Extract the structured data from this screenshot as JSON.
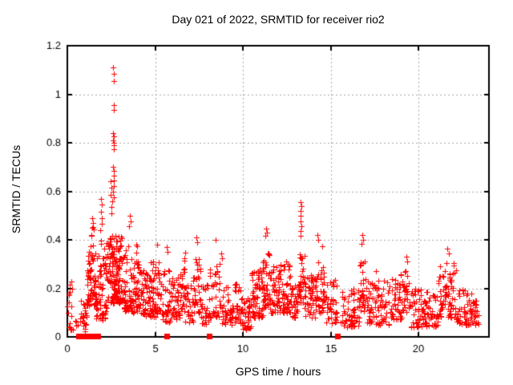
{
  "title": "Day 021 of 2022, SRMTID for receiver rio2",
  "chart_data": {
    "type": "scatter",
    "title": "Day 021 of 2022, SRMTID for receiver rio2",
    "xlabel": "GPS time / hours",
    "ylabel": "SRMTID / TECUs",
    "xlim": [
      0,
      24
    ],
    "ylim": [
      0,
      1.2
    ],
    "xticks": [
      0,
      5,
      10,
      15,
      20
    ],
    "xtick_labels": [
      "0",
      "5",
      "10",
      "15",
      "20"
    ],
    "yticks": [
      0,
      0.2,
      0.4,
      0.6,
      0.8,
      1,
      1.2
    ],
    "ytick_labels": [
      "0",
      "0.2",
      "0.4",
      "0.6",
      "0.8",
      "1",
      "1.2"
    ],
    "grid": true,
    "legend": "none",
    "marker": "plus",
    "marker_size": 7,
    "colors": {
      "series": "#ff0000",
      "grid": "#a8a8a8",
      "axis": "#000000",
      "background": "#ffffff"
    },
    "series_name": "SRMTID",
    "data_start_hour": 0.0,
    "data_end_hour": 23.4,
    "seed": 3,
    "peak_points": [
      [
        2.62,
        1.11
      ],
      [
        2.66,
        1.085
      ],
      [
        2.64,
        1.055
      ],
      [
        2.63,
        0.955
      ],
      [
        2.66,
        0.935
      ],
      [
        2.61,
        0.84
      ],
      [
        2.64,
        0.825
      ],
      [
        2.62,
        0.81
      ],
      [
        2.66,
        0.8
      ],
      [
        2.63,
        0.79
      ],
      [
        2.65,
        0.775
      ],
      [
        2.62,
        0.7
      ],
      [
        2.65,
        0.685
      ],
      [
        2.63,
        0.665
      ],
      [
        2.66,
        0.645
      ],
      [
        2.63,
        0.62
      ],
      [
        2.61,
        0.6
      ],
      [
        2.64,
        0.575
      ],
      [
        2.48,
        0.64
      ],
      [
        2.52,
        0.615
      ],
      [
        2.46,
        0.585
      ],
      [
        2.55,
        0.56
      ],
      [
        2.5,
        0.535
      ],
      [
        2.53,
        0.51
      ],
      [
        1.92,
        0.57
      ],
      [
        1.96,
        0.545
      ],
      [
        1.9,
        0.515
      ],
      [
        1.94,
        0.49
      ],
      [
        1.98,
        0.465
      ],
      [
        1.88,
        0.44
      ],
      [
        1.43,
        0.49
      ],
      [
        1.47,
        0.47
      ],
      [
        1.4,
        0.45
      ],
      [
        3.55,
        0.5
      ],
      [
        3.6,
        0.475
      ],
      [
        3.52,
        0.455
      ],
      [
        13.28,
        0.555
      ],
      [
        13.31,
        0.54
      ],
      [
        13.27,
        0.52
      ],
      [
        13.3,
        0.5
      ],
      [
        13.29,
        0.475
      ],
      [
        13.32,
        0.455
      ],
      [
        13.26,
        0.435
      ],
      [
        13.3,
        0.415
      ],
      [
        11.32,
        0.445
      ],
      [
        11.36,
        0.43
      ],
      [
        11.28,
        0.415
      ],
      [
        14.25,
        0.42
      ],
      [
        14.28,
        0.4
      ],
      [
        14.52,
        0.375
      ],
      [
        16.78,
        0.42
      ],
      [
        16.82,
        0.4
      ],
      [
        16.75,
        0.385
      ],
      [
        7.35,
        0.41
      ],
      [
        7.38,
        0.39
      ],
      [
        8.42,
        0.4
      ],
      [
        8.78,
        0.345
      ],
      [
        8.82,
        0.325
      ],
      [
        5.12,
        0.38
      ],
      [
        5.65,
        0.37
      ],
      [
        5.7,
        0.35
      ],
      [
        19.32,
        0.33
      ],
      [
        19.36,
        0.31
      ],
      [
        21.62,
        0.365
      ],
      [
        21.7,
        0.345
      ],
      [
        17.58,
        0.27
      ],
      [
        12.45,
        0.31
      ],
      [
        0.76,
        0.15
      ]
    ],
    "zero_markers": [
      0.62,
      0.78,
      0.94,
      1.2,
      1.33,
      1.52,
      1.74,
      5.67,
      8.07,
      15.37
    ],
    "band_segments": [
      {
        "t": [
          0.02,
          0.28
        ],
        "n": 18,
        "v": [
          0.03,
          0.26
        ],
        "bias": 1.2
      },
      {
        "t": [
          0.3,
          0.62
        ],
        "n": 5,
        "v": [
          0.01,
          0.08
        ],
        "bias": 1.2
      },
      {
        "t": [
          0.7,
          1.12
        ],
        "n": 26,
        "v": [
          0.02,
          0.14
        ],
        "bias": 1.2
      },
      {
        "t": [
          1.12,
          1.62
        ],
        "n": 65,
        "v": [
          0.13,
          0.38
        ],
        "bias": 1.4
      },
      {
        "t": [
          1.35,
          1.5
        ],
        "n": 6,
        "v": [
          0.32,
          0.46
        ],
        "bias": 1.0
      },
      {
        "t": [
          1.62,
          2.28
        ],
        "n": 80,
        "v": [
          0.07,
          0.4
        ],
        "bias": 1.5
      },
      {
        "t": [
          2.28,
          3.2
        ],
        "n": 150,
        "v": [
          0.14,
          0.42
        ],
        "bias": 1.4
      },
      {
        "t": [
          3.2,
          4.1
        ],
        "n": 95,
        "v": [
          0.1,
          0.38
        ],
        "bias": 1.5
      },
      {
        "t": [
          4.1,
          4.72
        ],
        "n": 55,
        "v": [
          0.08,
          0.28
        ],
        "bias": 1.4
      },
      {
        "t": [
          4.72,
          5.35
        ],
        "n": 60,
        "v": [
          0.08,
          0.33
        ],
        "bias": 1.5
      },
      {
        "t": [
          5.35,
          5.92
        ],
        "n": 42,
        "v": [
          0.06,
          0.28
        ],
        "bias": 1.4
      },
      {
        "t": [
          5.92,
          6.42
        ],
        "n": 40,
        "v": [
          0.07,
          0.25
        ],
        "bias": 1.4
      },
      {
        "t": [
          6.42,
          6.72
        ],
        "n": 26,
        "v": [
          0.1,
          0.35
        ],
        "bias": 1.3
      },
      {
        "t": [
          6.72,
          7.22
        ],
        "n": 36,
        "v": [
          0.06,
          0.25
        ],
        "bias": 1.4
      },
      {
        "t": [
          7.22,
          7.62
        ],
        "n": 30,
        "v": [
          0.1,
          0.34
        ],
        "bias": 1.3
      },
      {
        "t": [
          7.62,
          8.1
        ],
        "n": 30,
        "v": [
          0.05,
          0.22
        ],
        "bias": 1.4
      },
      {
        "t": [
          8.1,
          8.72
        ],
        "n": 38,
        "v": [
          0.08,
          0.3
        ],
        "bias": 1.4
      },
      {
        "t": [
          8.72,
          9.9
        ],
        "n": 75,
        "v": [
          0.05,
          0.22
        ],
        "bias": 1.4
      },
      {
        "t": [
          9.9,
          10.45
        ],
        "n": 42,
        "v": [
          0.03,
          0.16
        ],
        "bias": 1.3
      },
      {
        "t": [
          10.45,
          11.12
        ],
        "n": 65,
        "v": [
          0.08,
          0.28
        ],
        "bias": 1.4
      },
      {
        "t": [
          11.12,
          11.5
        ],
        "n": 38,
        "v": [
          0.12,
          0.35
        ],
        "bias": 1.3
      },
      {
        "t": [
          11.5,
          12.25
        ],
        "n": 65,
        "v": [
          0.1,
          0.3
        ],
        "bias": 1.5
      },
      {
        "t": [
          12.25,
          12.72
        ],
        "n": 45,
        "v": [
          0.1,
          0.31
        ],
        "bias": 1.4
      },
      {
        "t": [
          12.72,
          13.12
        ],
        "n": 30,
        "v": [
          0.08,
          0.22
        ],
        "bias": 1.4
      },
      {
        "t": [
          13.12,
          13.52
        ],
        "n": 36,
        "v": [
          0.14,
          0.36
        ],
        "bias": 1.3
      },
      {
        "t": [
          13.52,
          14.12
        ],
        "n": 48,
        "v": [
          0.08,
          0.26
        ],
        "bias": 1.4
      },
      {
        "t": [
          14.12,
          14.72
        ],
        "n": 48,
        "v": [
          0.1,
          0.31
        ],
        "bias": 1.4
      },
      {
        "t": [
          14.72,
          15.35
        ],
        "n": 40,
        "v": [
          0.05,
          0.24
        ],
        "bias": 1.4
      },
      {
        "t": [
          15.55,
          16.62
        ],
        "n": 62,
        "v": [
          0.04,
          0.2
        ],
        "bias": 1.4
      },
      {
        "t": [
          16.62,
          17.02
        ],
        "n": 30,
        "v": [
          0.1,
          0.32
        ],
        "bias": 1.3
      },
      {
        "t": [
          17.02,
          18.42
        ],
        "n": 85,
        "v": [
          0.05,
          0.24
        ],
        "bias": 1.4
      },
      {
        "t": [
          18.42,
          19.12
        ],
        "n": 48,
        "v": [
          0.07,
          0.26
        ],
        "bias": 1.4
      },
      {
        "t": [
          19.12,
          19.52
        ],
        "n": 26,
        "v": [
          0.1,
          0.28
        ],
        "bias": 1.3
      },
      {
        "t": [
          19.52,
          21.12
        ],
        "n": 95,
        "v": [
          0.04,
          0.2
        ],
        "bias": 1.4
      },
      {
        "t": [
          21.12,
          22.12
        ],
        "n": 75,
        "v": [
          0.08,
          0.31
        ],
        "bias": 1.4
      },
      {
        "t": [
          22.12,
          23.02
        ],
        "n": 58,
        "v": [
          0.05,
          0.2
        ],
        "bias": 1.4
      },
      {
        "t": [
          23.02,
          23.42
        ],
        "n": 26,
        "v": [
          0.05,
          0.16
        ],
        "bias": 1.3
      }
    ]
  }
}
